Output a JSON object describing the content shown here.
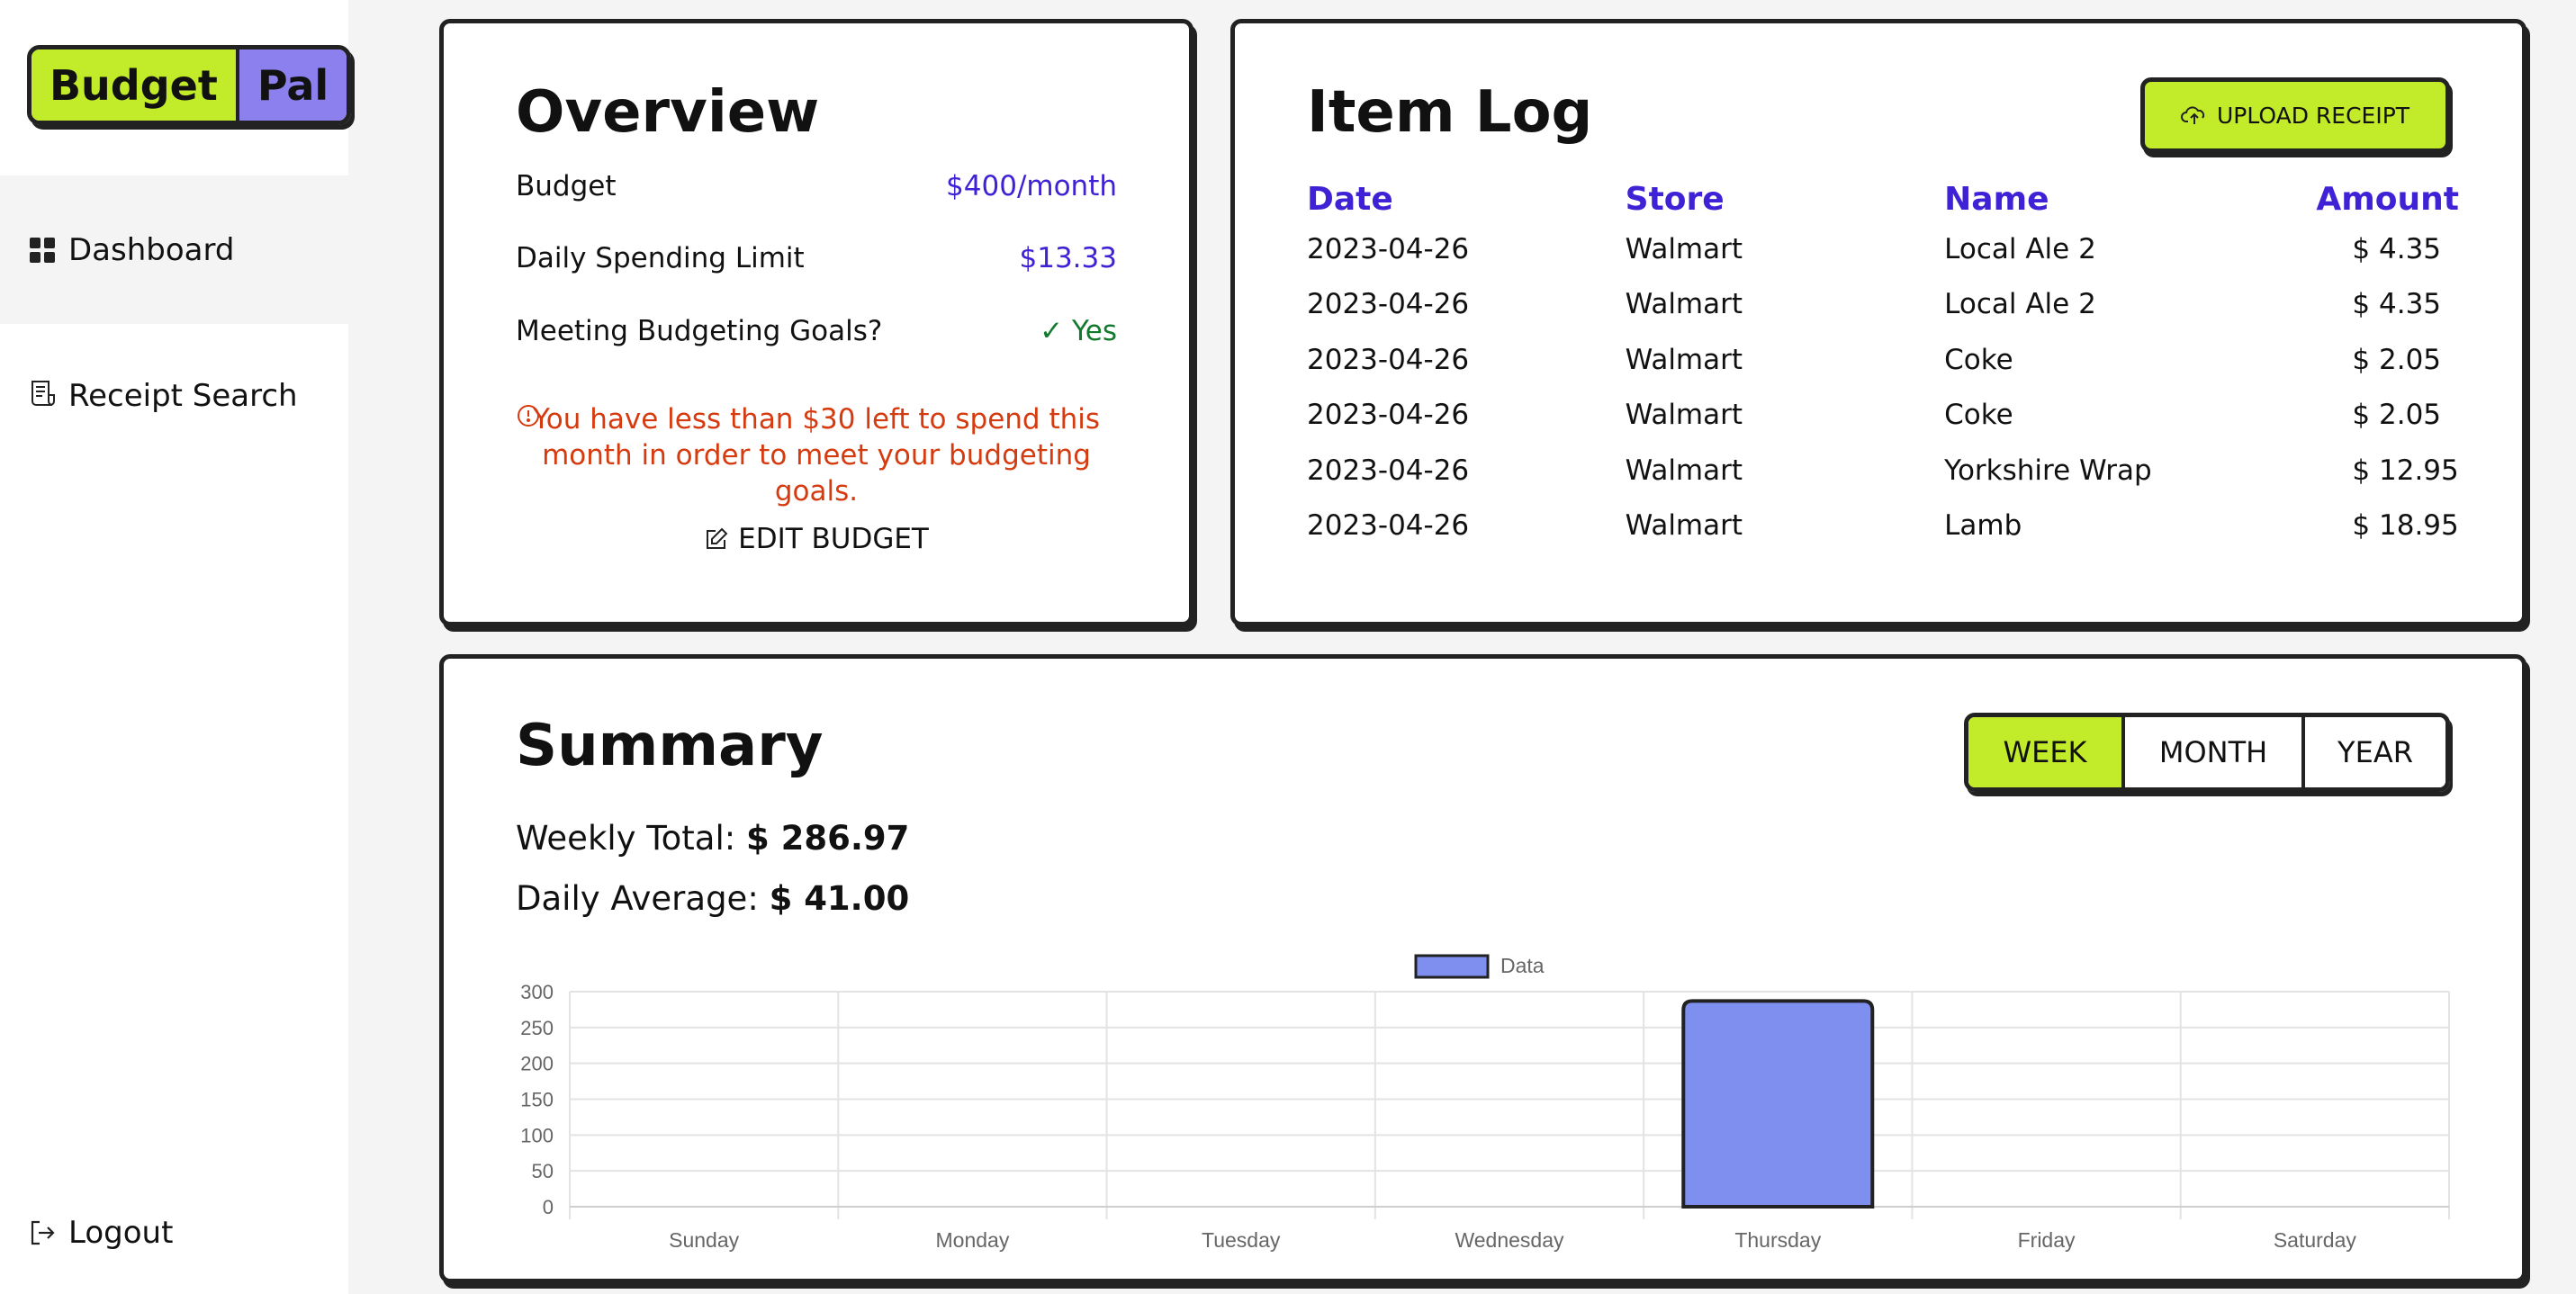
{
  "logo": {
    "part1": "Budget",
    "part2": "Pal"
  },
  "nav": {
    "dashboard": "Dashboard",
    "receipt_search": "Receipt Search",
    "logout": "Logout"
  },
  "overview": {
    "title": "Overview",
    "rows": [
      {
        "label": "Budget",
        "value": "$400/month"
      },
      {
        "label": "Daily Spending Limit",
        "value": "$13.33"
      },
      {
        "label": "Meeting Budgeting Goals?",
        "value": "Yes"
      }
    ],
    "warning": "You have less than $30 left to spend this month in order to meet your budgeting goals.",
    "edit_label": "EDIT BUDGET"
  },
  "item_log": {
    "title": "Item Log",
    "upload_label": "UPLOAD RECEIPT",
    "columns": [
      "Date",
      "Store",
      "Name",
      "Amount"
    ],
    "rows": [
      [
        "2023-04-26",
        "Walmart",
        "Local Ale 2",
        "$ 4.35"
      ],
      [
        "2023-04-26",
        "Walmart",
        "Local Ale 2",
        "$ 4.35"
      ],
      [
        "2023-04-26",
        "Walmart",
        "Coke",
        "$ 2.05"
      ],
      [
        "2023-04-26",
        "Walmart",
        "Coke",
        "$ 2.05"
      ],
      [
        "2023-04-26",
        "Walmart",
        "Yorkshire Wrap",
        "$ 12.95"
      ],
      [
        "2023-04-26",
        "Walmart",
        "Lamb",
        "$ 18.95"
      ]
    ]
  },
  "summary": {
    "title": "Summary",
    "tabs": [
      "WEEK",
      "MONTH",
      "YEAR"
    ],
    "active_tab": "WEEK",
    "weekly_label": "Weekly Total:",
    "weekly_value": "$ 286.97",
    "daily_label": "Daily Average:",
    "daily_value": "$ 41.00"
  },
  "colors": {
    "accent_green": "#c2eb2a",
    "accent_purple": "#8b80ee",
    "link_blue": "#3f22d6",
    "warn_red": "#d63a0f",
    "bar_fill": "#7f8ff0"
  },
  "chart_data": {
    "type": "bar",
    "categories": [
      "Sunday",
      "Monday",
      "Tuesday",
      "Wednesday",
      "Thursday",
      "Friday",
      "Saturday"
    ],
    "series": [
      {
        "name": "Data",
        "values": [
          0,
          0,
          0,
          0,
          286.97,
          0,
          0
        ]
      }
    ],
    "ylim": [
      0,
      300
    ],
    "yticks": [
      0,
      50,
      100,
      150,
      200,
      250,
      300
    ],
    "legend": "top-center",
    "grid": true
  }
}
